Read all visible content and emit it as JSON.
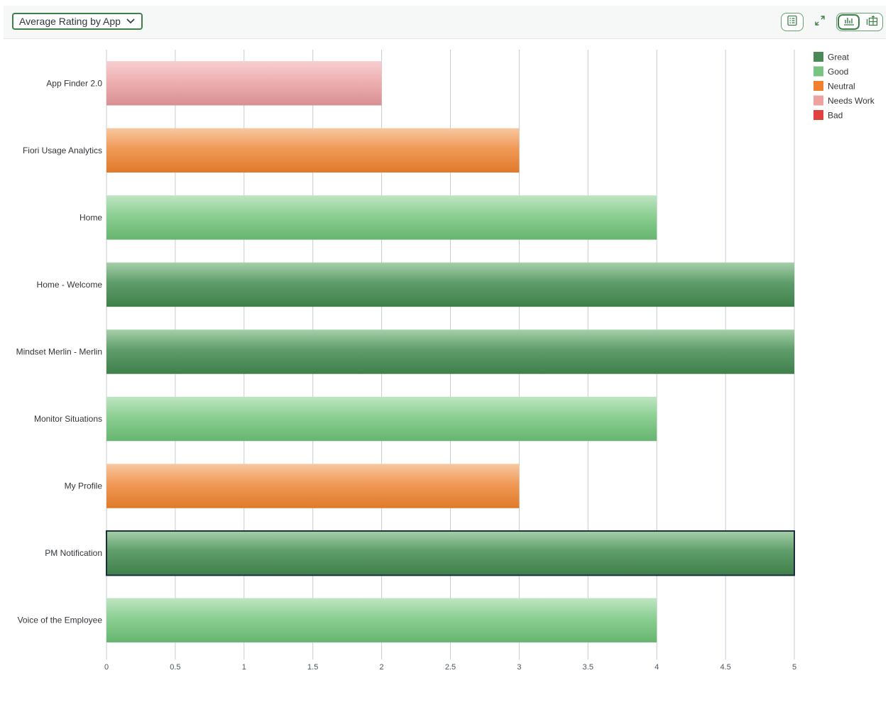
{
  "toolbar": {
    "selector_label": "Average Rating by App",
    "icons": [
      "table-view-icon",
      "fullscreen-icon",
      "chart-view-icon",
      "chart-table-view-icon"
    ]
  },
  "colors": {
    "accent": "#3f7f4a",
    "great": "#4a8a57",
    "good": "#7ac483",
    "neutral": "#ee8030",
    "needs_work": "#eea1a1",
    "bad": "#e04040",
    "gridline": "#c6ccd2"
  },
  "chart_data": {
    "type": "bar",
    "orientation": "horizontal",
    "title": "",
    "xlabel": "",
    "ylabel": "",
    "categories": [
      "App Finder 2.0",
      "Fiori Usage Analytics",
      "Home",
      "Home - Welcome",
      "Mindset Merlin - Merlin",
      "Monitor Situations",
      "My Profile",
      "PM Notification",
      "Voice of the Employee"
    ],
    "values": [
      2,
      3,
      4,
      5,
      5,
      4,
      3,
      5,
      4
    ],
    "value_category": [
      "Needs Work",
      "Neutral",
      "Good",
      "Great",
      "Great",
      "Good",
      "Neutral",
      "Great",
      "Good"
    ],
    "selected_index": 7,
    "xlim": [
      0,
      5
    ],
    "xticks": [
      "0",
      "0.5",
      "1",
      "1.5",
      "2",
      "2.5",
      "3",
      "3.5",
      "4",
      "4.5",
      "5"
    ],
    "grid": true,
    "legend_position": "top-right",
    "legend": [
      {
        "label": "Great",
        "color": "#4a8a57"
      },
      {
        "label": "Good",
        "color": "#7ac483"
      },
      {
        "label": "Neutral",
        "color": "#ee8030"
      },
      {
        "label": "Needs Work",
        "color": "#eea1a1"
      },
      {
        "label": "Bad",
        "color": "#e04040"
      }
    ]
  }
}
